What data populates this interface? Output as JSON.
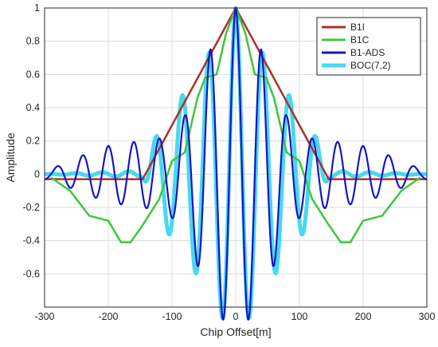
{
  "chart_data": {
    "type": "line",
    "xlabel": "Chip Offset[m]",
    "ylabel": "Amplitude",
    "xlim": [
      -300,
      300
    ],
    "ylim": [
      -0.8,
      1
    ],
    "xticks": [
      -300,
      -200,
      -100,
      0,
      100,
      200,
      300
    ],
    "yticks": [
      -0.6,
      -0.4,
      -0.2,
      0,
      0.2,
      0.4,
      0.6,
      0.8,
      1
    ],
    "grid": true,
    "legend_position": "top-right",
    "series": [
      {
        "name": "B1I",
        "color": "#a8332a",
        "x": [
          -300,
          -146,
          0,
          146,
          300
        ],
        "y": [
          -0.03,
          -0.03,
          1.0,
          -0.03,
          -0.03
        ]
      },
      {
        "name": "B1C",
        "color": "#3cc83c",
        "x": [
          -290,
          -260,
          -230,
          -200,
          -180,
          -165,
          -145,
          -120,
          -100,
          -80,
          -60,
          -48,
          -30,
          -15,
          0,
          15,
          30,
          48,
          60,
          80,
          100,
          120,
          145,
          165,
          180,
          200,
          230,
          260,
          290
        ],
        "y": [
          -0.02,
          -0.1,
          -0.25,
          -0.28,
          -0.41,
          -0.41,
          -0.3,
          -0.15,
          0.08,
          0.13,
          0.46,
          0.58,
          0.6,
          0.85,
          1.0,
          0.85,
          0.6,
          0.58,
          0.46,
          0.13,
          0.08,
          -0.15,
          -0.3,
          -0.41,
          -0.41,
          -0.28,
          -0.25,
          -0.1,
          -0.02
        ]
      },
      {
        "name": "B1-ADS",
        "color": "#1515c8",
        "model": "cos",
        "amplitude_peaks": [
          [
            0,
            1.0
          ],
          [
            40,
            0.75
          ],
          [
            80,
            0.35
          ],
          [
            110,
            0.22
          ],
          [
            150,
            0.2
          ],
          [
            200,
            0.17
          ],
          [
            250,
            0.1
          ],
          [
            290,
            0.03
          ]
        ],
        "period_m": 40
      },
      {
        "name": "BOC(7,2)",
        "color": "#48d8f0",
        "model": "cos",
        "amplitude_peaks": [
          [
            0,
            1.0
          ],
          [
            70,
            0.55
          ],
          [
            120,
            0.28
          ],
          [
            146,
            0.02
          ],
          [
            300,
            0.0
          ]
        ],
        "period_m": 42
      }
    ]
  }
}
